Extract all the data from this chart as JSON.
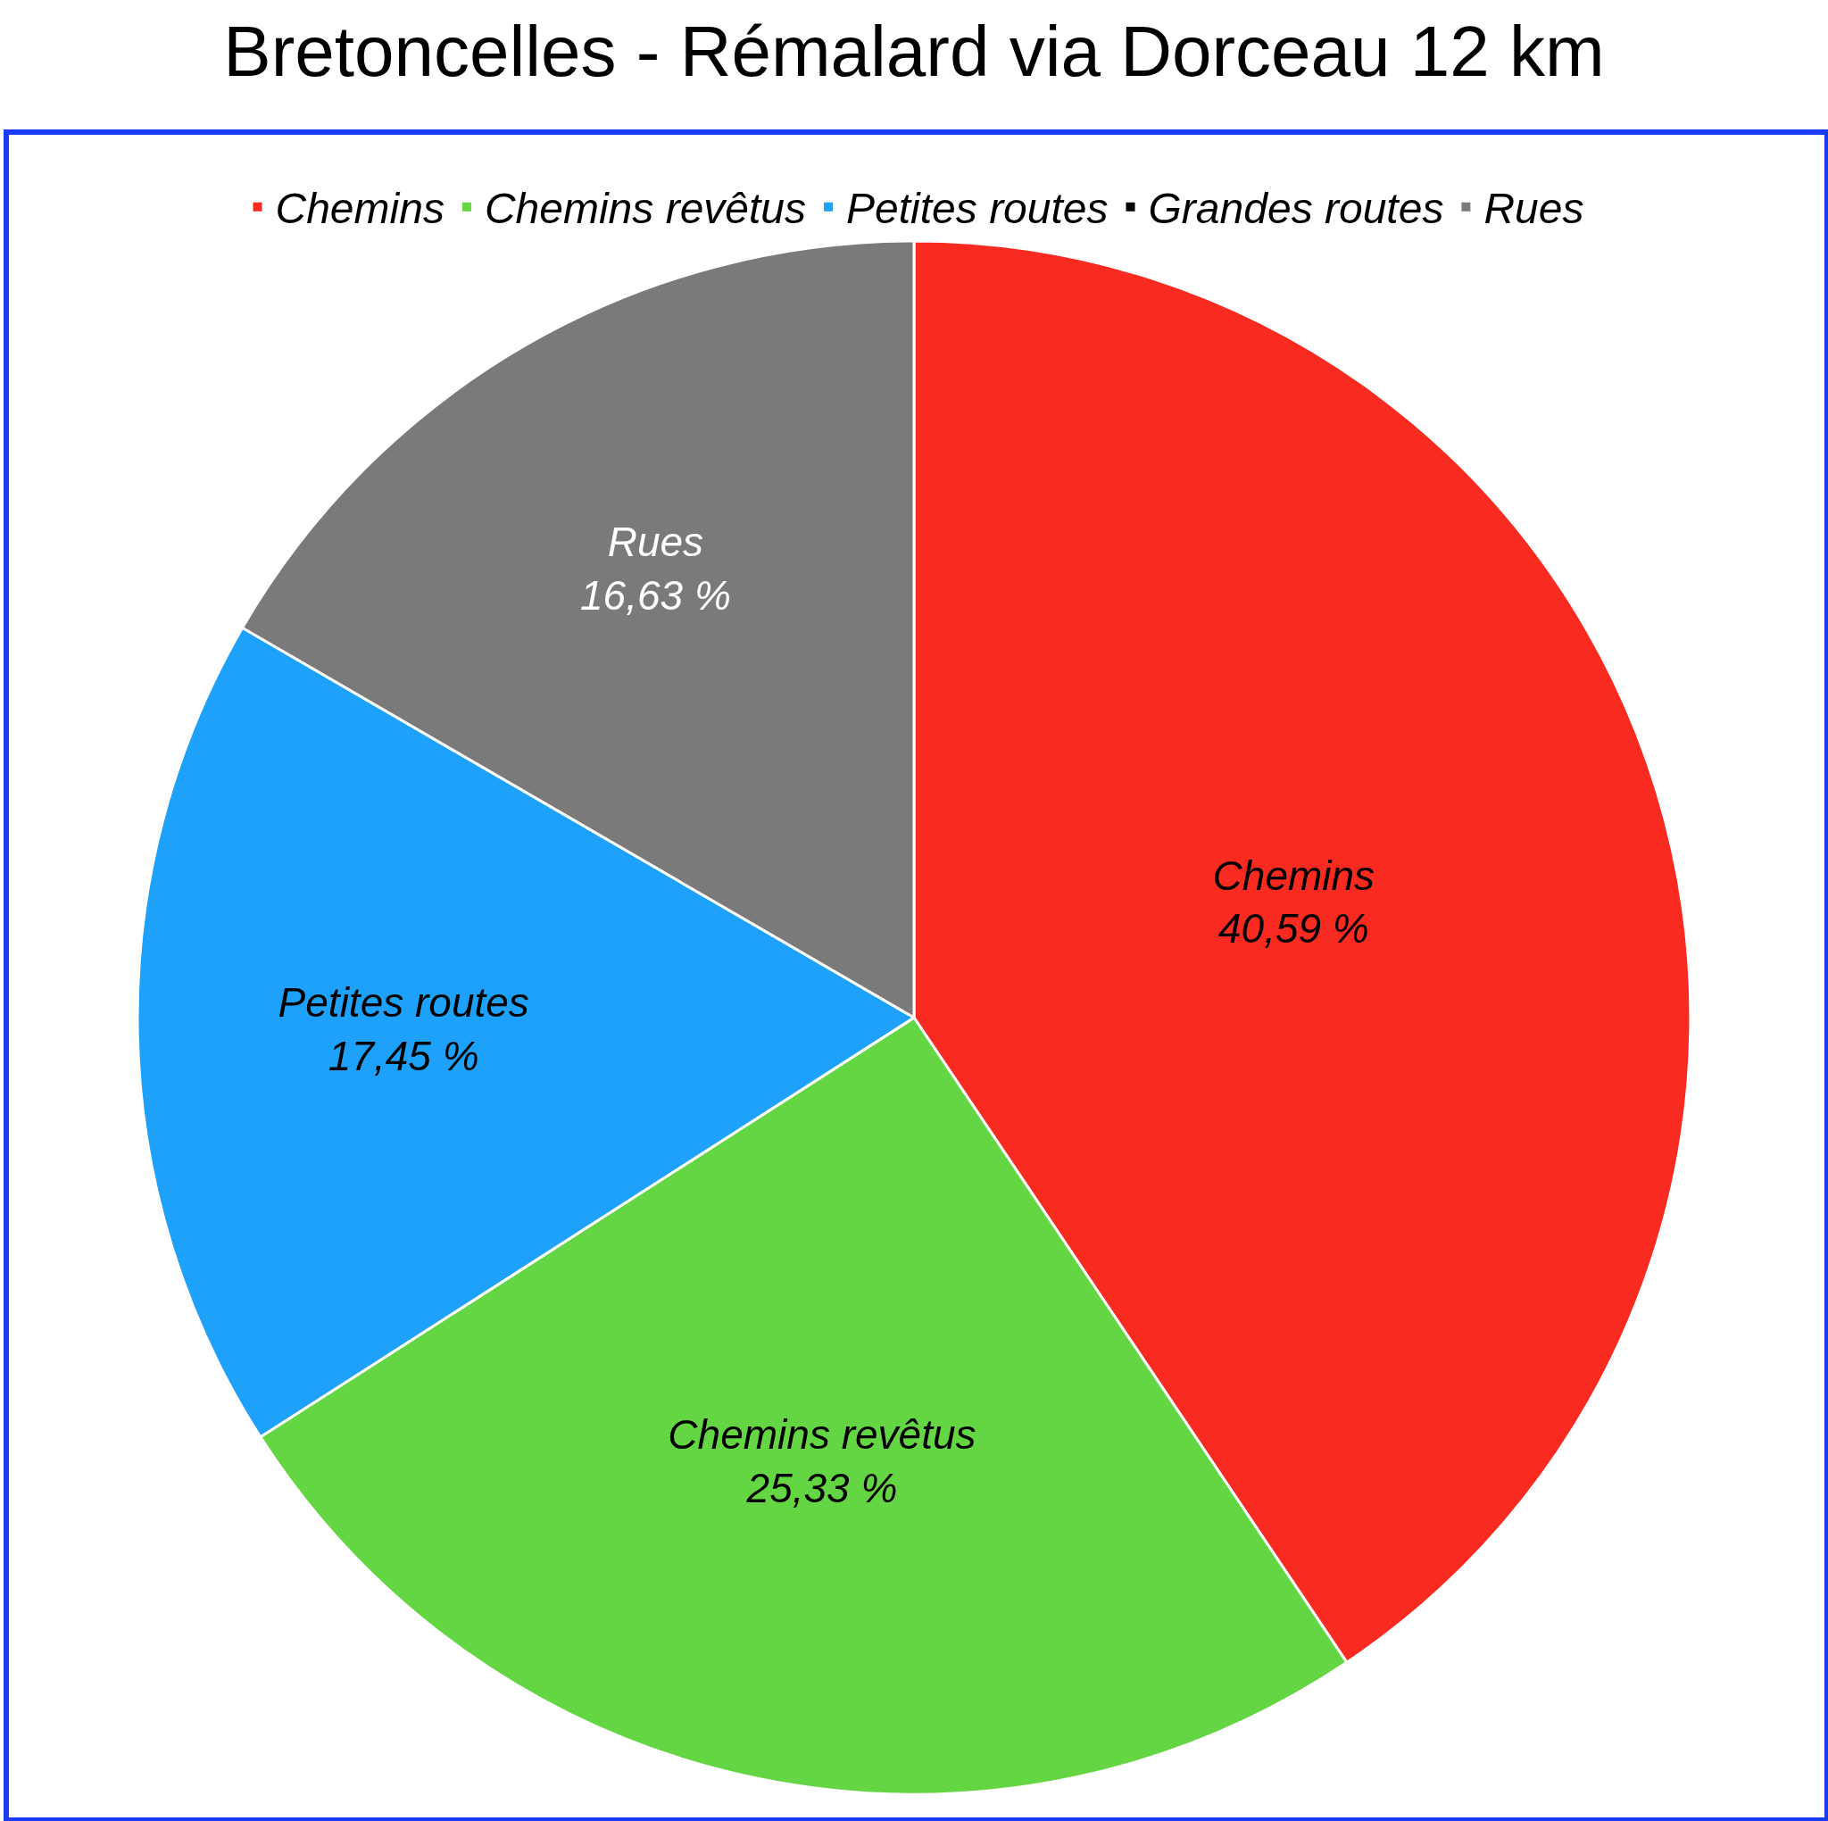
{
  "chart_data": {
    "type": "pie",
    "title": "Bretoncelles - Rémalard via Dorceau 12 km",
    "categories": [
      "Chemins",
      "Chemins revêtus",
      "Petites routes",
      "Grandes routes",
      "Rues"
    ],
    "values": [
      40.59,
      25.33,
      17.45,
      0,
      16.63
    ],
    "value_labels": [
      "40,59 %",
      "25,33 %",
      "17,45 %",
      null,
      "16,63 %"
    ],
    "colors": [
      "#f92a1f",
      "#65d643",
      "#1da1fa",
      "#000000",
      "#7a7a7a"
    ],
    "legend": "top"
  }
}
